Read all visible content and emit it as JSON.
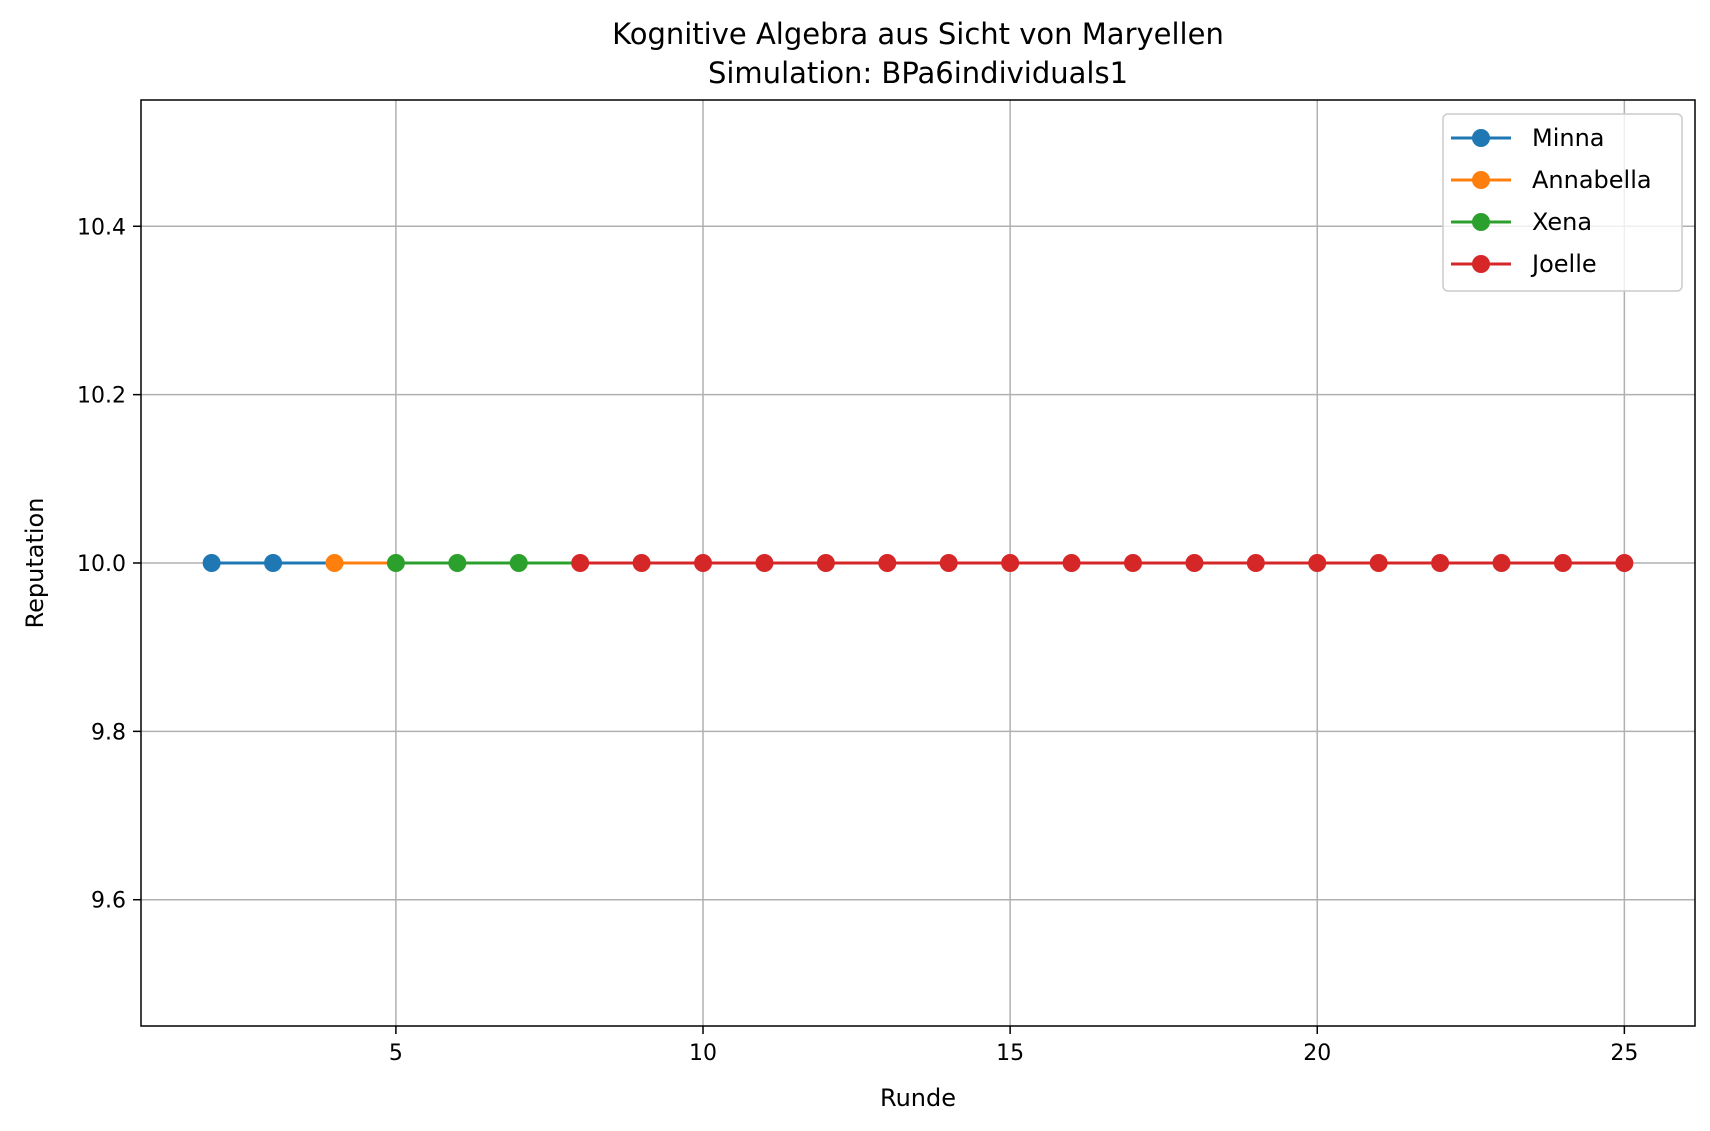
{
  "chart_data": {
    "type": "line",
    "title": "Kognitive Algebra aus Sicht von Maryellen",
    "subtitle": "Simulation: BPa6individuals1",
    "xlabel": "Runde",
    "ylabel": "Reputation",
    "xlim": [
      0.85,
      26.15
    ],
    "ylim": [
      9.45,
      10.55
    ],
    "xticks": [
      5,
      10,
      15,
      20,
      25
    ],
    "xtick_labels": [
      "5",
      "10",
      "15",
      "20",
      "25"
    ],
    "yticks": [
      9.6,
      9.8,
      10.0,
      10.2,
      10.4
    ],
    "ytick_labels": [
      "9.6",
      "9.8",
      "10.0",
      "10.2",
      "10.4"
    ],
    "grid": true,
    "legend_position": "top-right",
    "series": [
      {
        "name": "Minna",
        "color": "#1f77b4",
        "x": [
          2,
          3,
          4
        ],
        "y": [
          10.0,
          10.0,
          10.0
        ],
        "marker_count": 2
      },
      {
        "name": "Annabella",
        "color": "#ff7f0e",
        "x": [
          4,
          5
        ],
        "y": [
          10.0,
          10.0
        ],
        "marker_count": 1
      },
      {
        "name": "Xena",
        "color": "#2ca02c",
        "x": [
          5,
          6,
          7,
          8
        ],
        "y": [
          10.0,
          10.0,
          10.0,
          10.0
        ],
        "marker_count": 3
      },
      {
        "name": "Joelle",
        "color": "#d62728",
        "x": [
          8,
          9,
          10,
          11,
          12,
          13,
          14,
          15,
          16,
          17,
          18,
          19,
          20,
          21,
          22,
          23,
          24,
          25
        ],
        "y": [
          10.0,
          10.0,
          10.0,
          10.0,
          10.0,
          10.0,
          10.0,
          10.0,
          10.0,
          10.0,
          10.0,
          10.0,
          10.0,
          10.0,
          10.0,
          10.0,
          10.0,
          10.0
        ],
        "marker_count": 18
      }
    ]
  }
}
